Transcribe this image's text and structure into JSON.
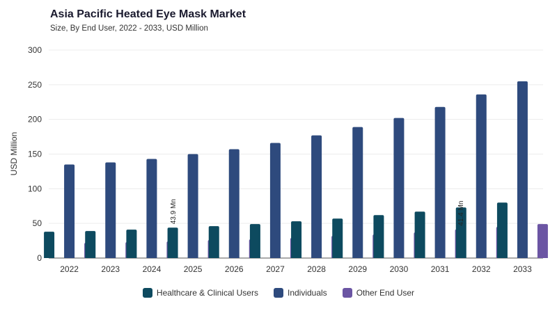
{
  "chart_data": {
    "type": "bar",
    "title": "Asia Pacific Heated Eye Mask Market",
    "subtitle": "Size, By End User, 2022 - 2033, USD Million",
    "xlabel": "",
    "ylabel": "USD Million",
    "ylim": [
      0,
      300
    ],
    "yticks": [
      0,
      50,
      100,
      150,
      200,
      250,
      300
    ],
    "grid": true,
    "legend_position": "bottom",
    "categories": [
      "2022",
      "2023",
      "2024",
      "2025",
      "2026",
      "2027",
      "2028",
      "2029",
      "2030",
      "2031",
      "2032",
      "2033"
    ],
    "series": [
      {
        "name": "Healthcare & Clinical Users",
        "color": "#0d4a5f",
        "values": [
          38,
          39,
          41,
          43.9,
          46,
          49,
          53,
          57,
          62,
          67,
          73,
          80
        ]
      },
      {
        "name": "Individuals",
        "color": "#2e4a7d",
        "values": [
          135,
          138,
          143,
          150,
          157,
          166,
          177,
          189,
          202,
          218,
          236,
          255
        ]
      },
      {
        "name": "Other End User",
        "color": "#6b55a3",
        "values": [
          22,
          23,
          24,
          26,
          27,
          29,
          32,
          34,
          37,
          41.4,
          45,
          49
        ]
      }
    ],
    "annotations": [
      {
        "text": "43.9 Mn",
        "category": "2025",
        "series": 0
      },
      {
        "text": "41.4 Mn",
        "category": "2031",
        "series": 2
      }
    ]
  }
}
